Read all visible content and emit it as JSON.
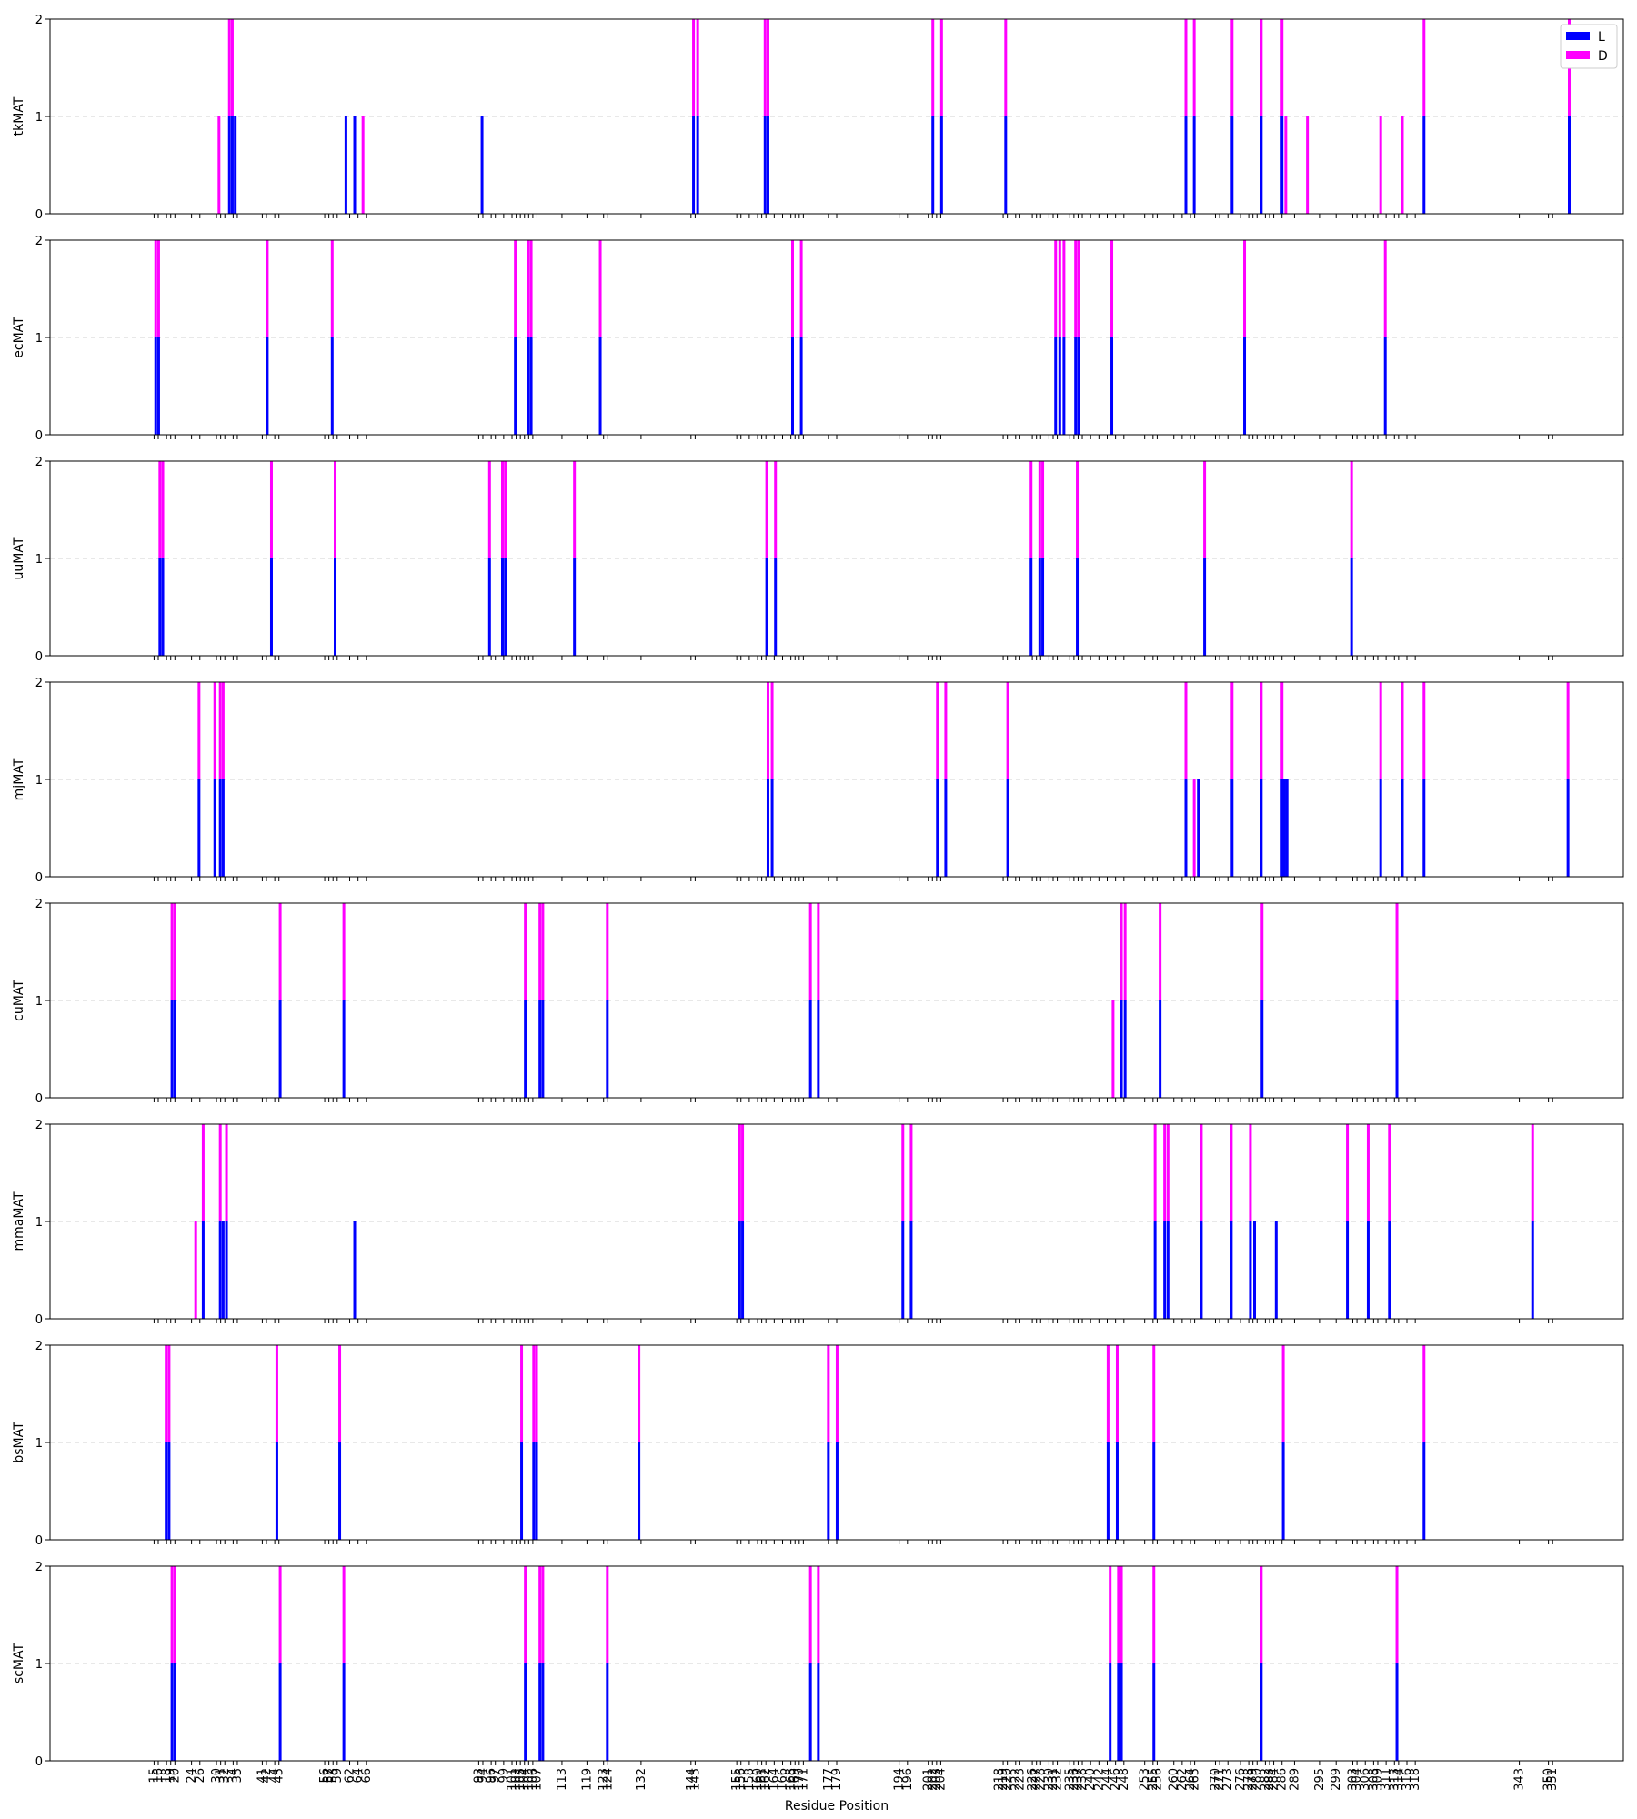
{
  "chart_data": {
    "type": "bar",
    "stacked": true,
    "xlabel": "Residue Position",
    "ylim": [
      0,
      2
    ],
    "yticks": [
      0,
      1,
      2
    ],
    "grid": "y-dashed",
    "legend": {
      "placement": "top-right",
      "entries": [
        {
          "name": "L",
          "color": "#0000ff"
        },
        {
          "name": "D",
          "color": "#ff00ff"
        }
      ]
    },
    "xticks": [
      "15",
      "16",
      "18",
      "19",
      "20",
      "24",
      "26",
      "30",
      "31",
      "32",
      "34",
      "35",
      "41",
      "42",
      "44",
      "45",
      "56",
      "57",
      "58",
      "59",
      "62",
      "64",
      "66",
      "93",
      "94",
      "96",
      "97",
      "99",
      "101",
      "102",
      "103",
      "104",
      "105",
      "106",
      "107",
      "113",
      "119",
      "123",
      "124",
      "132",
      "144",
      "145",
      "155",
      "156",
      "158",
      "160",
      "161",
      "162",
      "164",
      "166",
      "168",
      "169",
      "170",
      "171",
      "177",
      "179",
      "194",
      "196",
      "201",
      "202",
      "203",
      "204",
      "218",
      "219",
      "220",
      "222",
      "223",
      "226",
      "227",
      "228",
      "230",
      "231",
      "232",
      "235",
      "236",
      "237",
      "238",
      "240",
      "242",
      "244",
      "246",
      "248",
      "253",
      "255",
      "256",
      "260",
      "262",
      "264",
      "265",
      "270",
      "271",
      "273",
      "276",
      "278",
      "279",
      "280",
      "282",
      "283",
      "284",
      "286",
      "289",
      "295",
      "299",
      "303",
      "304",
      "306",
      "308",
      "309",
      "311",
      "313",
      "314",
      "316",
      "318",
      "343",
      "350",
      "351"
    ],
    "panels": [
      {
        "ylabel": "tkMAT",
        "bars": [
          {
            "x": 30.6,
            "L": 0,
            "D": 1
          },
          {
            "x": 33.1,
            "L": 1,
            "D": 1
          },
          {
            "x": 33.8,
            "L": 1,
            "D": 1
          },
          {
            "x": 34.5,
            "L": 1,
            "D": 0
          },
          {
            "x": 61.1,
            "L": 1,
            "D": 0
          },
          {
            "x": 63.2,
            "L": 1,
            "D": 0
          },
          {
            "x": 65.2,
            "L": 0,
            "D": 1
          },
          {
            "x": 93.8,
            "L": 1,
            "D": 0
          },
          {
            "x": 144.6,
            "L": 1,
            "D": 1
          },
          {
            "x": 145.6,
            "L": 1,
            "D": 1
          },
          {
            "x": 161.8,
            "L": 1,
            "D": 1
          },
          {
            "x": 162.5,
            "L": 1,
            "D": 1
          },
          {
            "x": 202.1,
            "L": 1,
            "D": 1
          },
          {
            "x": 204.2,
            "L": 1,
            "D": 1
          },
          {
            "x": 219.6,
            "L": 1,
            "D": 1
          },
          {
            "x": 262.9,
            "L": 1,
            "D": 1
          },
          {
            "x": 264.9,
            "L": 1,
            "D": 1
          },
          {
            "x": 274.0,
            "L": 1,
            "D": 1
          },
          {
            "x": 281.0,
            "L": 1,
            "D": 1
          },
          {
            "x": 286.0,
            "L": 1,
            "D": 1
          },
          {
            "x": 286.9,
            "L": 0,
            "D": 1
          },
          {
            "x": 292.1,
            "L": 0,
            "D": 1
          },
          {
            "x": 309.7,
            "L": 0,
            "D": 1
          },
          {
            "x": 314.9,
            "L": 0,
            "D": 1
          },
          {
            "x": 320.1,
            "L": 1,
            "D": 1
          },
          {
            "x": 355.0,
            "L": 1,
            "D": 1
          }
        ]
      },
      {
        "ylabel": "ecMAT",
        "bars": [
          {
            "x": 15.4,
            "L": 1,
            "D": 1
          },
          {
            "x": 16.1,
            "L": 1,
            "D": 1
          },
          {
            "x": 42.2,
            "L": 1,
            "D": 1
          },
          {
            "x": 57.8,
            "L": 1,
            "D": 1
          },
          {
            "x": 101.8,
            "L": 1,
            "D": 1
          },
          {
            "x": 104.9,
            "L": 1,
            "D": 1
          },
          {
            "x": 105.6,
            "L": 1,
            "D": 1
          },
          {
            "x": 122.2,
            "L": 1,
            "D": 1
          },
          {
            "x": 168.4,
            "L": 1,
            "D": 1
          },
          {
            "x": 170.5,
            "L": 1,
            "D": 1
          },
          {
            "x": 231.6,
            "L": 1,
            "D": 1
          },
          {
            "x": 232.6,
            "L": 1,
            "D": 1
          },
          {
            "x": 233.6,
            "L": 1,
            "D": 1
          },
          {
            "x": 236.4,
            "L": 1,
            "D": 1
          },
          {
            "x": 237.1,
            "L": 1,
            "D": 1
          },
          {
            "x": 245.1,
            "L": 1,
            "D": 1
          },
          {
            "x": 277.0,
            "L": 1,
            "D": 1
          },
          {
            "x": 310.8,
            "L": 1,
            "D": 1
          }
        ]
      },
      {
        "ylabel": "uuMAT",
        "bars": [
          {
            "x": 16.4,
            "L": 1,
            "D": 1
          },
          {
            "x": 17.1,
            "L": 1,
            "D": 1
          },
          {
            "x": 43.2,
            "L": 1,
            "D": 1
          },
          {
            "x": 58.5,
            "L": 1,
            "D": 1
          },
          {
            "x": 95.6,
            "L": 1,
            "D": 1
          },
          {
            "x": 98.7,
            "L": 1,
            "D": 1
          },
          {
            "x": 99.4,
            "L": 1,
            "D": 1
          },
          {
            "x": 116.0,
            "L": 1,
            "D": 1
          },
          {
            "x": 162.2,
            "L": 1,
            "D": 1
          },
          {
            "x": 164.3,
            "L": 1,
            "D": 1
          },
          {
            "x": 225.7,
            "L": 1,
            "D": 1
          },
          {
            "x": 227.8,
            "L": 1,
            "D": 1
          },
          {
            "x": 228.5,
            "L": 1,
            "D": 1
          },
          {
            "x": 236.8,
            "L": 1,
            "D": 1
          },
          {
            "x": 267.4,
            "L": 1,
            "D": 1
          },
          {
            "x": 302.7,
            "L": 1,
            "D": 1
          }
        ]
      },
      {
        "ylabel": "mjMAT",
        "bars": [
          {
            "x": 25.8,
            "L": 1,
            "D": 1
          },
          {
            "x": 29.6,
            "L": 1,
            "D": 1
          },
          {
            "x": 30.9,
            "L": 1,
            "D": 1
          },
          {
            "x": 31.6,
            "L": 1,
            "D": 1
          },
          {
            "x": 162.5,
            "L": 1,
            "D": 1
          },
          {
            "x": 163.5,
            "L": 1,
            "D": 1
          },
          {
            "x": 203.2,
            "L": 1,
            "D": 1
          },
          {
            "x": 205.2,
            "L": 1,
            "D": 1
          },
          {
            "x": 220.1,
            "L": 1,
            "D": 1
          },
          {
            "x": 262.9,
            "L": 1,
            "D": 1
          },
          {
            "x": 264.9,
            "L": 0,
            "D": 1
          },
          {
            "x": 265.9,
            "L": 1,
            "D": 0
          },
          {
            "x": 274.0,
            "L": 1,
            "D": 1
          },
          {
            "x": 281.0,
            "L": 1,
            "D": 1
          },
          {
            "x": 286.0,
            "L": 1,
            "D": 1
          },
          {
            "x": 286.6,
            "L": 1,
            "D": 0
          },
          {
            "x": 287.2,
            "L": 1,
            "D": 0
          },
          {
            "x": 309.7,
            "L": 1,
            "D": 1
          },
          {
            "x": 314.9,
            "L": 1,
            "D": 1
          },
          {
            "x": 320.1,
            "L": 1,
            "D": 1
          },
          {
            "x": 354.7,
            "L": 1,
            "D": 1
          }
        ]
      },
      {
        "ylabel": "cuMAT",
        "bars": [
          {
            "x": 19.3,
            "L": 1,
            "D": 1
          },
          {
            "x": 20.0,
            "L": 1,
            "D": 1
          },
          {
            "x": 45.3,
            "L": 1,
            "D": 1
          },
          {
            "x": 60.6,
            "L": 1,
            "D": 1
          },
          {
            "x": 104.2,
            "L": 1,
            "D": 1
          },
          {
            "x": 107.7,
            "L": 1,
            "D": 1
          },
          {
            "x": 108.4,
            "L": 1,
            "D": 1
          },
          {
            "x": 123.9,
            "L": 1,
            "D": 1
          },
          {
            "x": 172.7,
            "L": 1,
            "D": 1
          },
          {
            "x": 174.6,
            "L": 1,
            "D": 1
          },
          {
            "x": 245.4,
            "L": 0,
            "D": 1
          },
          {
            "x": 247.4,
            "L": 1,
            "D": 1
          },
          {
            "x": 248.3,
            "L": 1,
            "D": 1
          },
          {
            "x": 256.7,
            "L": 1,
            "D": 1
          },
          {
            "x": 281.2,
            "L": 1,
            "D": 1
          },
          {
            "x": 313.6,
            "L": 1,
            "D": 1
          }
        ]
      },
      {
        "ylabel": "mmaMAT",
        "bars": [
          {
            "x": 25.0,
            "L": 0,
            "D": 1
          },
          {
            "x": 26.8,
            "L": 1,
            "D": 1
          },
          {
            "x": 30.9,
            "L": 1,
            "D": 1
          },
          {
            "x": 31.6,
            "L": 1,
            "D": 0
          },
          {
            "x": 32.4,
            "L": 1,
            "D": 1
          },
          {
            "x": 63.2,
            "L": 1,
            "D": 0
          },
          {
            "x": 155.7,
            "L": 1,
            "D": 1
          },
          {
            "x": 156.4,
            "L": 1,
            "D": 1
          },
          {
            "x": 194.9,
            "L": 1,
            "D": 1
          },
          {
            "x": 196.9,
            "L": 1,
            "D": 1
          },
          {
            "x": 255.5,
            "L": 1,
            "D": 1
          },
          {
            "x": 257.8,
            "L": 1,
            "D": 1
          },
          {
            "x": 258.6,
            "L": 1,
            "D": 1
          },
          {
            "x": 266.6,
            "L": 1,
            "D": 1
          },
          {
            "x": 273.8,
            "L": 1,
            "D": 1
          },
          {
            "x": 278.4,
            "L": 1,
            "D": 1
          },
          {
            "x": 279.4,
            "L": 1,
            "D": 0
          },
          {
            "x": 284.6,
            "L": 1,
            "D": 0
          },
          {
            "x": 301.7,
            "L": 1,
            "D": 1
          },
          {
            "x": 306.7,
            "L": 1,
            "D": 1
          },
          {
            "x": 311.8,
            "L": 1,
            "D": 1
          },
          {
            "x": 346.2,
            "L": 1,
            "D": 1
          }
        ]
      },
      {
        "ylabel": "bsMAT",
        "bars": [
          {
            "x": 17.9,
            "L": 1,
            "D": 1
          },
          {
            "x": 18.6,
            "L": 1,
            "D": 1
          },
          {
            "x": 44.5,
            "L": 1,
            "D": 1
          },
          {
            "x": 59.6,
            "L": 1,
            "D": 1
          },
          {
            "x": 103.3,
            "L": 1,
            "D": 1
          },
          {
            "x": 106.2,
            "L": 1,
            "D": 1
          },
          {
            "x": 106.9,
            "L": 1,
            "D": 1
          },
          {
            "x": 131.5,
            "L": 1,
            "D": 1
          },
          {
            "x": 177.0,
            "L": 1,
            "D": 1
          },
          {
            "x": 179.1,
            "L": 1,
            "D": 1
          },
          {
            "x": 244.2,
            "L": 1,
            "D": 1
          },
          {
            "x": 246.4,
            "L": 1,
            "D": 1
          },
          {
            "x": 255.2,
            "L": 1,
            "D": 1
          },
          {
            "x": 286.3,
            "L": 1,
            "D": 1
          },
          {
            "x": 320.1,
            "L": 1,
            "D": 1
          }
        ]
      },
      {
        "ylabel": "scMAT",
        "bars": [
          {
            "x": 19.3,
            "L": 1,
            "D": 1
          },
          {
            "x": 20.0,
            "L": 1,
            "D": 1
          },
          {
            "x": 45.3,
            "L": 1,
            "D": 1
          },
          {
            "x": 60.6,
            "L": 1,
            "D": 1
          },
          {
            "x": 104.2,
            "L": 1,
            "D": 1
          },
          {
            "x": 107.7,
            "L": 1,
            "D": 1
          },
          {
            "x": 108.4,
            "L": 1,
            "D": 1
          },
          {
            "x": 123.9,
            "L": 1,
            "D": 1
          },
          {
            "x": 172.7,
            "L": 1,
            "D": 1
          },
          {
            "x": 174.6,
            "L": 1,
            "D": 1
          },
          {
            "x": 244.7,
            "L": 1,
            "D": 1
          },
          {
            "x": 246.7,
            "L": 1,
            "D": 1
          },
          {
            "x": 247.4,
            "L": 1,
            "D": 1
          },
          {
            "x": 255.2,
            "L": 1,
            "D": 1
          },
          {
            "x": 281.0,
            "L": 1,
            "D": 1
          },
          {
            "x": 313.6,
            "L": 1,
            "D": 1
          }
        ]
      }
    ]
  }
}
